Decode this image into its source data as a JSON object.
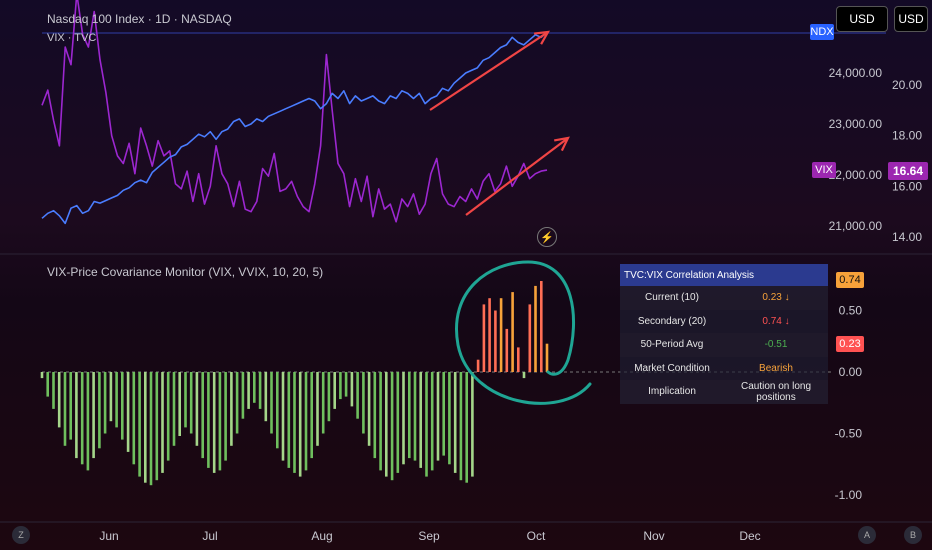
{
  "header": {
    "main_title": "Nasdaq 100 Index · 1D · NASDAQ",
    "secondary_title": "VIX · TVC",
    "indicator_title": "VIX-Price Covariance Monitor (VIX, VVIX, 10, 20, 5)"
  },
  "toolbar": {
    "currency_1": "USD",
    "currency_2": "USD"
  },
  "price_axis_right": {
    "ticks": [
      "24,000.00",
      "23,000.00",
      "22,000.00",
      "21,000.00"
    ],
    "label": "NDX",
    "color": "#2962ff"
  },
  "vix_axis_right": {
    "ticks": [
      "20.00",
      "18.00",
      "16.00",
      "14.00"
    ],
    "label": "VIX",
    "current": "16.64",
    "color": "#9c27b0"
  },
  "indicator_axis": {
    "ticks": [
      "0.50",
      "0.00",
      "-0.50",
      "-1.00"
    ],
    "tag_1": "0.74",
    "tag_2": "0.23"
  },
  "time_axis": {
    "ticks": [
      "Jun",
      "Jul",
      "Aug",
      "Sep",
      "Oct",
      "Nov",
      "Dec"
    ],
    "left_btn": "Z",
    "right_btn_a": "A",
    "right_btn_b": "B"
  },
  "table": {
    "title": "TVC:VIX Correlation Analysis",
    "rows": [
      {
        "label": "Current (10)",
        "value": "0.23 ↓",
        "color": "#f7a23a"
      },
      {
        "label": "Secondary (20)",
        "value": "0.74 ↓",
        "color": "#ff5252"
      },
      {
        "label": "50-Period Avg",
        "value": "-0.51",
        "color": "#4caf50"
      },
      {
        "label": "Market Condition",
        "value": "Bearish",
        "color": "#f7a23a"
      },
      {
        "label": "Implication",
        "value": "Caution on long positions",
        "color": "#e6e6e6"
      }
    ]
  },
  "chart_data": [
    {
      "type": "line",
      "series": [
        {
          "name": "NDX",
          "color": "#4a7dff",
          "values": [
            21150,
            21250,
            21300,
            21200,
            21050,
            21350,
            21400,
            21250,
            21300,
            21480,
            21450,
            21500,
            21550,
            21600,
            21700,
            21750,
            21850,
            21900,
            21850,
            22050,
            22150,
            22250,
            22350,
            22400,
            22550,
            22600,
            22700,
            22800,
            22750,
            22850,
            22700,
            22850,
            22900,
            23050,
            23100,
            22950,
            23000,
            23100,
            23050,
            23150,
            23200,
            23250,
            23300,
            23350,
            23400,
            23450,
            23500,
            23450,
            23300,
            23400,
            23600,
            23500,
            23650,
            23400,
            23550,
            23450,
            23500,
            23550,
            23450,
            23400,
            23550,
            23500,
            23650,
            23600,
            23500,
            23600,
            23400,
            23500,
            23550,
            23700,
            23650,
            23800,
            23900,
            24000,
            24050,
            24100,
            24250,
            24300,
            24400,
            24500,
            24550,
            24700,
            24600,
            24550,
            24650,
            24750,
            24700,
            24800
          ]
        },
        {
          "name": "VIX",
          "color": "#9c27d0",
          "values": [
            19.2,
            19.8,
            18.6,
            17.6,
            21.5,
            20.8,
            23.6,
            22.0,
            21.5,
            22.9,
            21.0,
            19.7,
            18.0,
            17.2,
            16.9,
            17.7,
            16.5,
            18.3,
            17.6,
            16.8,
            17.8,
            17.2,
            17.4,
            16.1,
            15.9,
            16.6,
            15.4,
            16.5,
            15.3,
            16.0,
            17.6,
            16.5,
            16.1,
            15.2,
            16.2,
            15.1,
            15.0,
            15.4,
            16.7,
            16.4,
            17.3,
            15.8,
            15.9,
            16.2,
            15.6,
            15.2,
            15.0,
            16.1,
            17.6,
            21.2,
            19.0,
            16.9,
            16.5,
            15.2,
            16.3,
            15.4,
            16.4,
            14.8,
            15.9,
            15.1,
            15.3,
            14.6,
            15.5,
            15.2,
            15.7,
            14.9,
            15.3,
            16.5,
            17.1,
            15.7,
            15.3,
            15.2,
            15.6,
            15.4,
            15.9,
            15.5,
            16.2,
            16.5,
            15.8,
            16.1,
            16.8,
            16.0,
            16.4,
            16.9,
            16.3,
            16.5,
            16.6,
            16.64
          ]
        }
      ],
      "annotations": [
        "up-arrow",
        "up-arrow"
      ]
    },
    {
      "type": "bar",
      "ylim": [
        -1.05,
        0.85
      ],
      "values": [
        -0.05,
        -0.2,
        -0.3,
        -0.45,
        -0.6,
        -0.55,
        -0.7,
        -0.75,
        -0.8,
        -0.7,
        -0.62,
        -0.5,
        -0.4,
        -0.45,
        -0.55,
        -0.65,
        -0.75,
        -0.85,
        -0.9,
        -0.92,
        -0.88,
        -0.82,
        -0.72,
        -0.6,
        -0.52,
        -0.45,
        -0.5,
        -0.6,
        -0.7,
        -0.78,
        -0.82,
        -0.8,
        -0.72,
        -0.6,
        -0.5,
        -0.38,
        -0.3,
        -0.25,
        -0.3,
        -0.4,
        -0.5,
        -0.62,
        -0.72,
        -0.78,
        -0.82,
        -0.85,
        -0.8,
        -0.7,
        -0.6,
        -0.5,
        -0.4,
        -0.3,
        -0.22,
        -0.2,
        -0.28,
        -0.38,
        -0.5,
        -0.6,
        -0.7,
        -0.8,
        -0.85,
        -0.88,
        -0.82,
        -0.75,
        -0.7,
        -0.72,
        -0.78,
        -0.85,
        -0.8,
        -0.72,
        -0.68,
        -0.75,
        -0.82,
        -0.88,
        -0.9,
        -0.85,
        0.1,
        0.55,
        0.6,
        0.5,
        0.6,
        0.35,
        0.65,
        0.2,
        -0.05,
        0.55,
        0.7,
        0.74,
        0.23
      ]
    }
  ]
}
